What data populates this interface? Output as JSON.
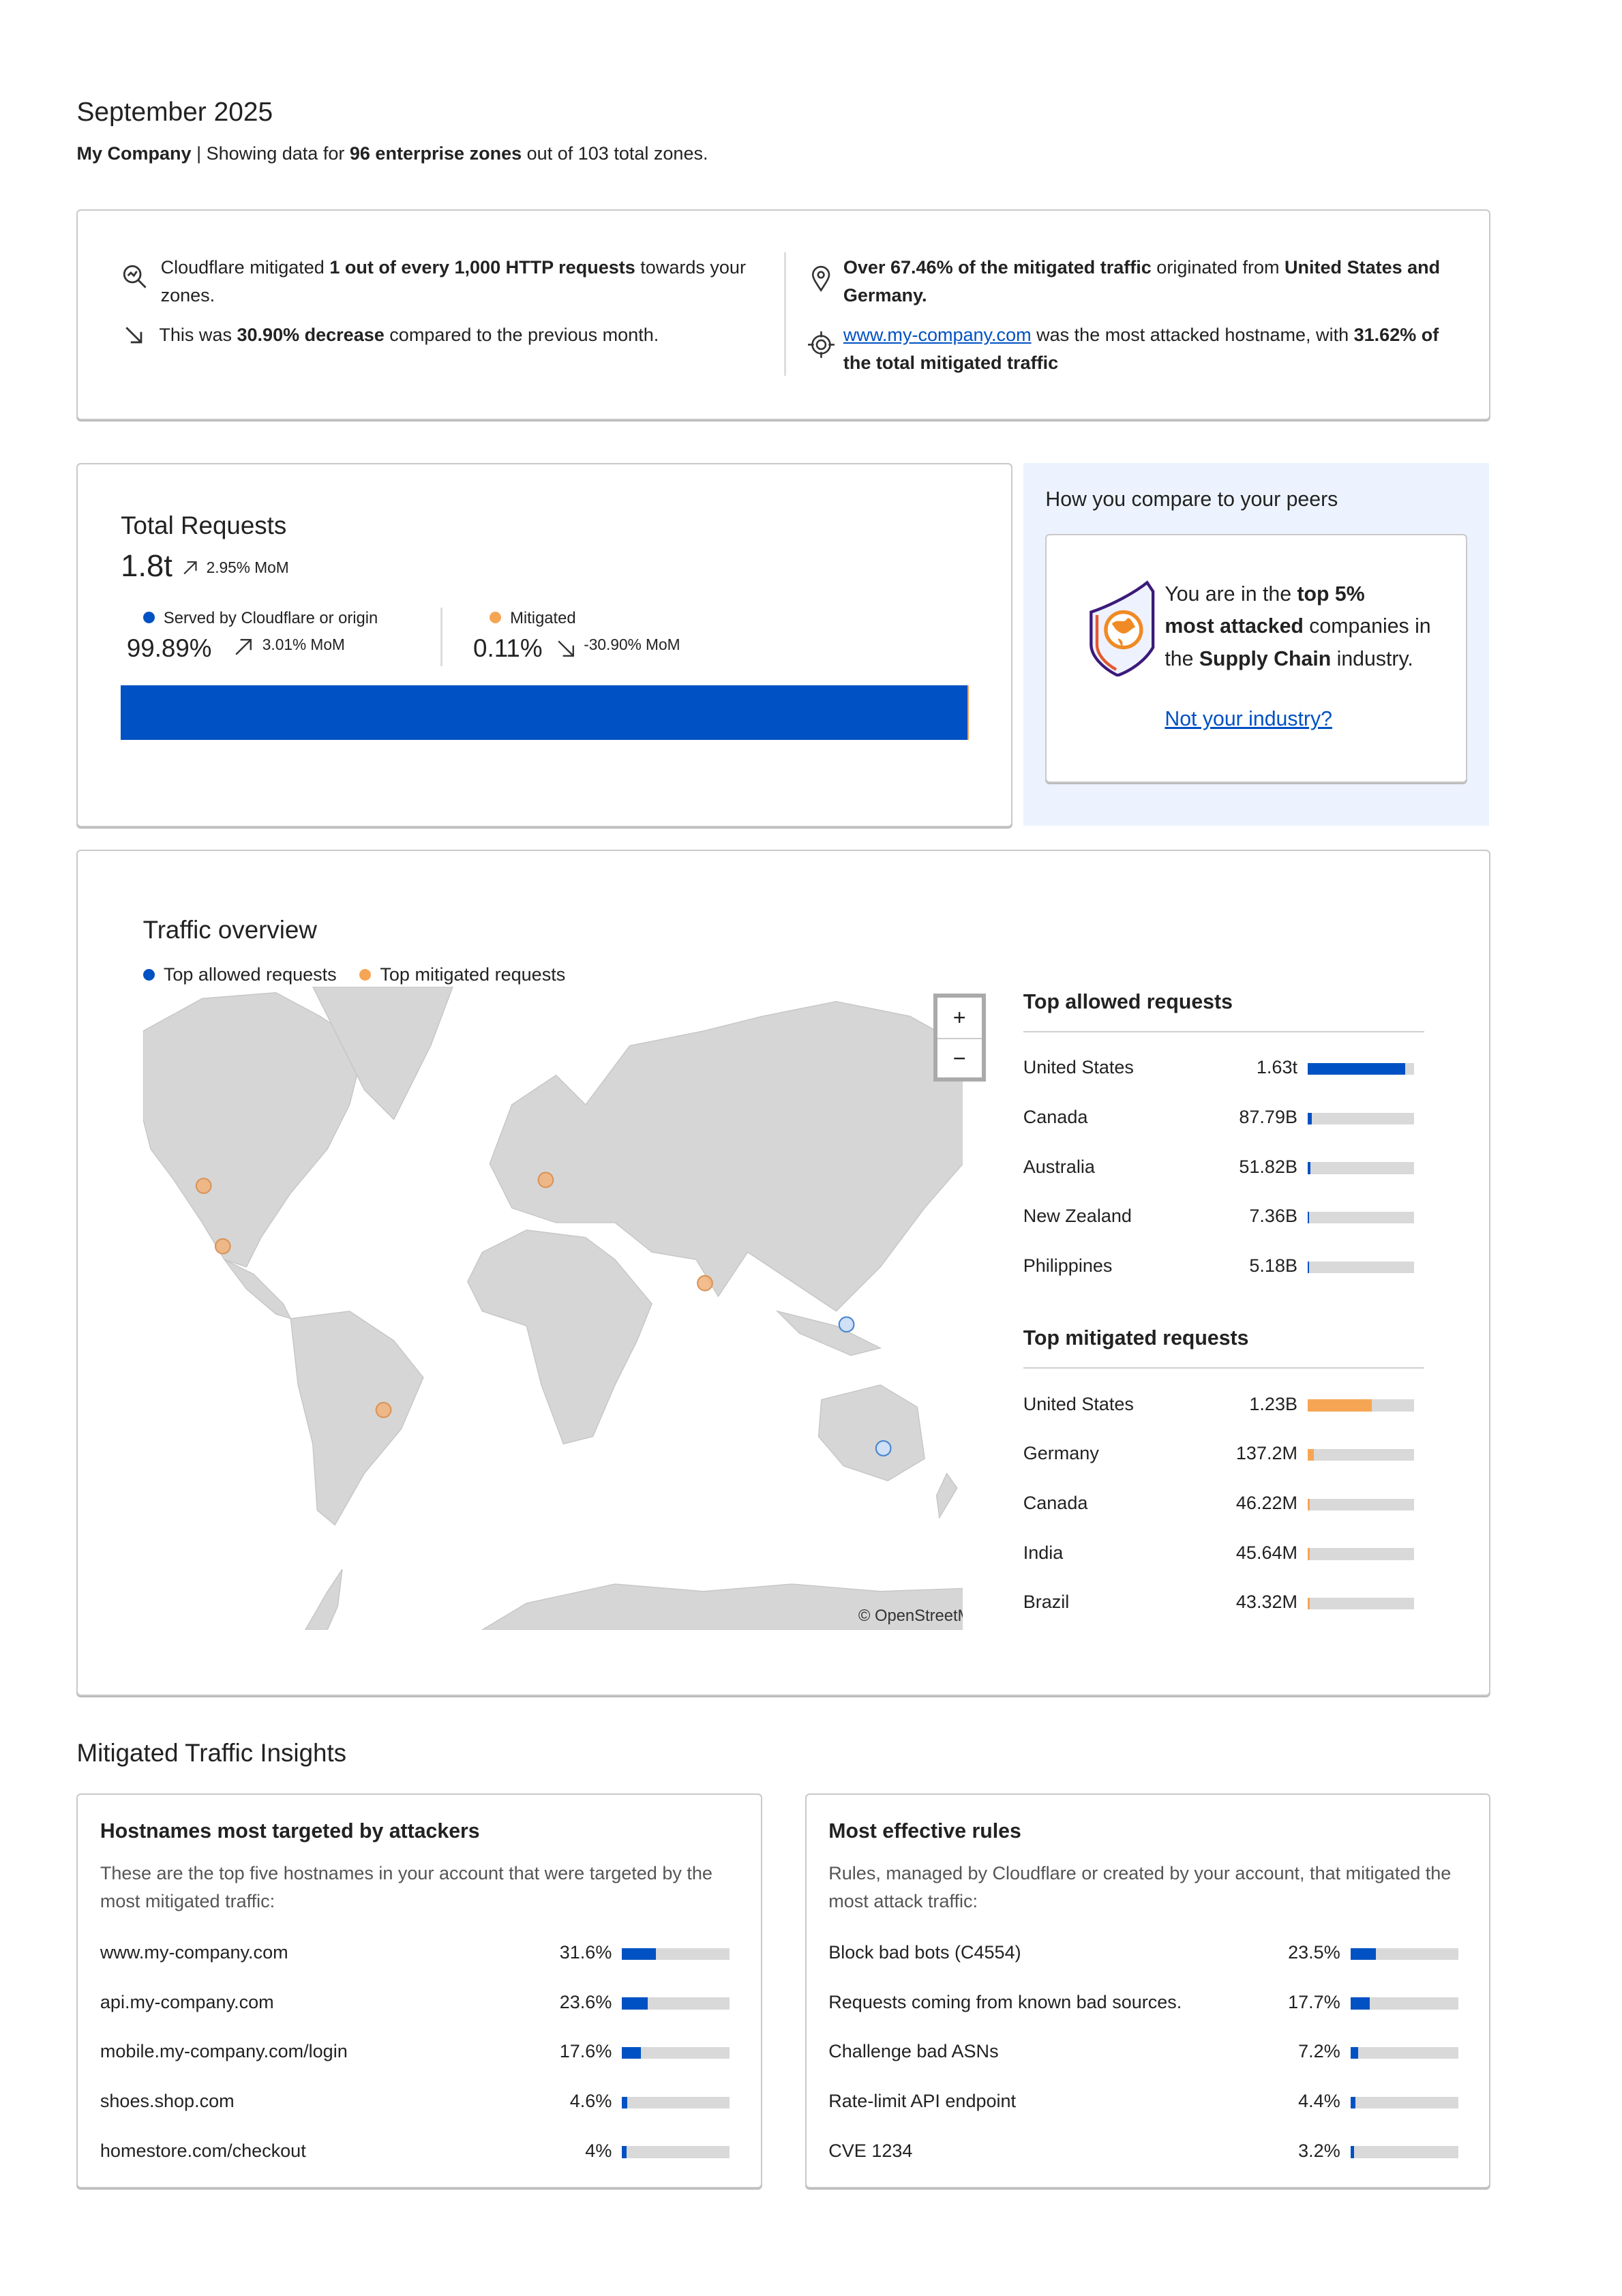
{
  "header": {
    "title": "September 2025",
    "company": "My Company",
    "subtitle_pre": " | Showing data for ",
    "zones": "96 enterprise zones",
    "subtitle_post": " out of 103 total zones."
  },
  "summary": {
    "mitigated": {
      "pre": "Cloudflare mitigated ",
      "bold": "1 out of every 1,000 HTTP requests",
      "post": " towards your zones.",
      "icon": "search-chart-icon"
    },
    "change": {
      "pre": "This was ",
      "bold": "30.90% decrease",
      "post": " compared to the previous month.",
      "icon": "arrow-down-right-icon"
    },
    "origin": {
      "bold1": "Over 67.46% of the mitigated traffic",
      "mid": " originated from ",
      "bold2": "United States and Germany.",
      "icon": "location-pin-icon"
    },
    "host": {
      "link": "www.my-company.com",
      "mid": " was the most attacked hostname, with ",
      "bold": "31.62% of the total mitigated traffic",
      "icon": "target-icon"
    }
  },
  "total": {
    "title": "Total Requests",
    "value": "1.8t",
    "mom": "2.95% MoM",
    "served": {
      "label": "Served by Cloudflare or origin",
      "value": "99.89%",
      "mom": "3.01% MoM",
      "percent": 99.89
    },
    "mitigated": {
      "label": "Mitigated",
      "value": "0.11%",
      "mom": "-30.90% MoM",
      "percent": 0.11
    },
    "colors": {
      "served": "#0051c3",
      "mitigated": "#f6a554"
    }
  },
  "peers": {
    "title": "How you compare to your peers",
    "t1": "You are in the ",
    "b1": "top 5%",
    "b2": "most attacked",
    "t2": " companies in the ",
    "b3": "Supply Chain",
    "t3": " industry.",
    "link": "Not your industry?"
  },
  "traffic": {
    "title": "Traffic overview",
    "legend_allowed": "Top allowed requests",
    "legend_mitigated": "Top mitigated requests",
    "zoom_in": "+",
    "zoom_out": "−",
    "attribution": "© OpenStreetMap",
    "allowed_title": "Top allowed requests",
    "allowed": [
      {
        "country": "United States",
        "value": "1.63t",
        "fill": 92
      },
      {
        "country": "Canada",
        "value": "87.79B",
        "fill": 4
      },
      {
        "country": "Australia",
        "value": "51.82B",
        "fill": 2.5
      },
      {
        "country": "New Zealand",
        "value": "7.36B",
        "fill": 1
      },
      {
        "country": "Philippines",
        "value": "5.18B",
        "fill": 1
      }
    ],
    "mitigated_title": "Top mitigated requests",
    "mitigated": [
      {
        "country": "United States",
        "value": "1.23B",
        "fill": 60
      },
      {
        "country": "Germany",
        "value": "137.2M",
        "fill": 6
      },
      {
        "country": "Canada",
        "value": "46.22M",
        "fill": 2
      },
      {
        "country": "India",
        "value": "45.64M",
        "fill": 2
      },
      {
        "country": "Brazil",
        "value": "43.32M",
        "fill": 2
      }
    ]
  },
  "insights": {
    "title": "Mitigated Traffic Insights",
    "hostnames": {
      "title": "Hostnames most targeted by attackers",
      "desc": "These are the top five hostnames in your account that were targeted by the most mitigated traffic:",
      "rows": [
        {
          "name": "www.my-company.com",
          "value": "31.6%",
          "fill": 31.6
        },
        {
          "name": "api.my-company.com",
          "value": "23.6%",
          "fill": 23.6
        },
        {
          "name": "mobile.my-company.com/login",
          "value": "17.6%",
          "fill": 17.6
        },
        {
          "name": "shoes.shop.com",
          "value": "4.6%",
          "fill": 4.6
        },
        {
          "name": "homestore.com/checkout",
          "value": "4%",
          "fill": 4
        }
      ]
    },
    "rules": {
      "title": "Most effective rules",
      "desc": "Rules, managed by Cloudflare or created by your account, that mitigated the most attack traffic:",
      "rows": [
        {
          "name": "Block bad bots (C4554)",
          "value": "23.5%",
          "fill": 23.5
        },
        {
          "name": "Requests coming from known bad sources.",
          "value": "17.7%",
          "fill": 17.7
        },
        {
          "name": "Challenge bad ASNs",
          "value": "7.2%",
          "fill": 7.2
        },
        {
          "name": "Rate-limit API endpoint",
          "value": "4.4%",
          "fill": 4.4
        },
        {
          "name": "CVE 1234",
          "value": "3.2%",
          "fill": 3.2
        }
      ]
    }
  }
}
